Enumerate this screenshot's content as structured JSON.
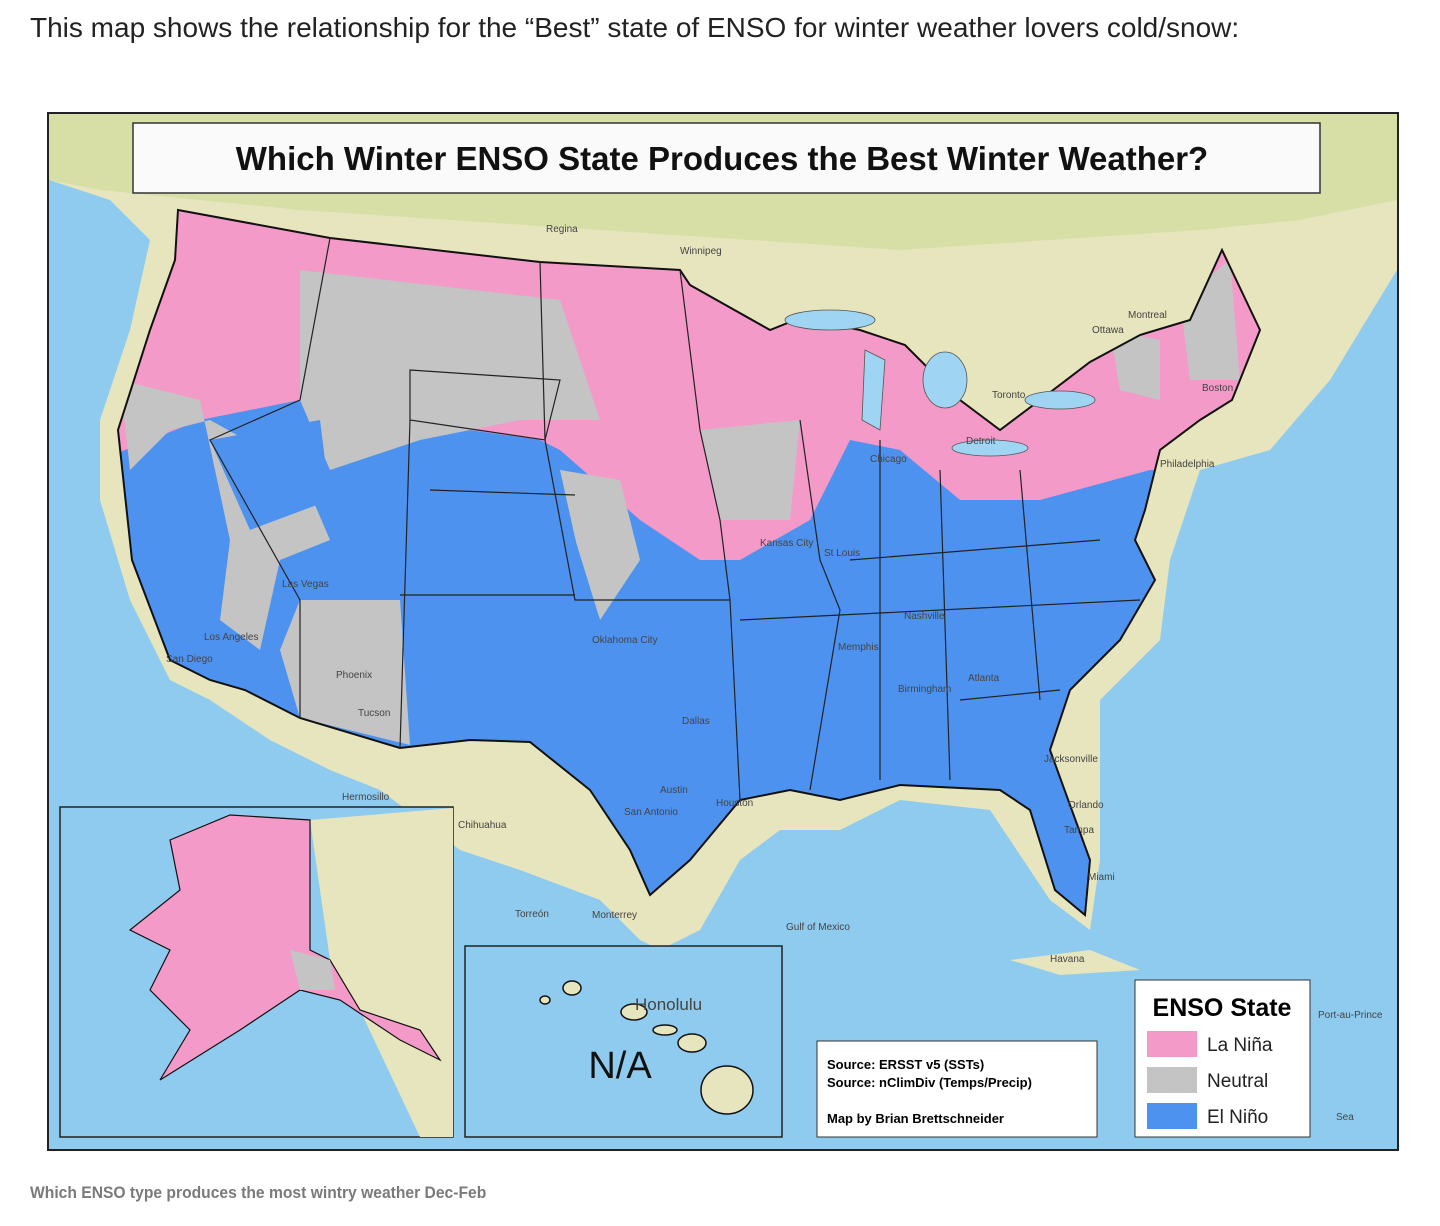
{
  "intro": "This map shows the relationship for the “Best” state of ENSO for winter weather lovers cold/snow:",
  "map": {
    "title": "Which Winter ENSO State Produces the Best Winter Weather?",
    "hawaii_note": "N/A",
    "sources": [
      "Source: ERSST v5 (SSTs)",
      "Source: nClimDiv (Temps/Precip)",
      "Map by Brian Brettschneider"
    ],
    "legend": {
      "title": "ENSO State",
      "items": [
        {
          "label": "La Niña",
          "color": "#f49ac8"
        },
        {
          "label": "Neutral",
          "color": "#c4c4c4"
        },
        {
          "label": "El Niño",
          "color": "#4e92f0"
        }
      ]
    },
    "places": [
      "Honolulu",
      "Havana",
      "Chihuahua",
      "Hermosillo",
      "Torreón",
      "Monterrey",
      "Gulf of Mexico",
      "Dallas",
      "Houston",
      "Austin",
      "San Antonio",
      "Jacksonville",
      "Miami",
      "Tampa",
      "Orlando",
      "Atlanta",
      "Nashville",
      "Memphis",
      "St Louis",
      "Chicago",
      "Detroit",
      "Toronto",
      "Ottawa",
      "Montreal",
      "Boston",
      "Philadelphia",
      "Los Angeles",
      "San Diego",
      "Phoenix",
      "Tucson",
      "Las Vegas",
      "Regina",
      "Winnipeg",
      "Kansas City",
      "Oklahoma City",
      "Birmingham",
      "Port-au-Prince",
      "Sea"
    ]
  },
  "caption": "Which ENSO type produces the most wintry weather Dec-Feb"
}
